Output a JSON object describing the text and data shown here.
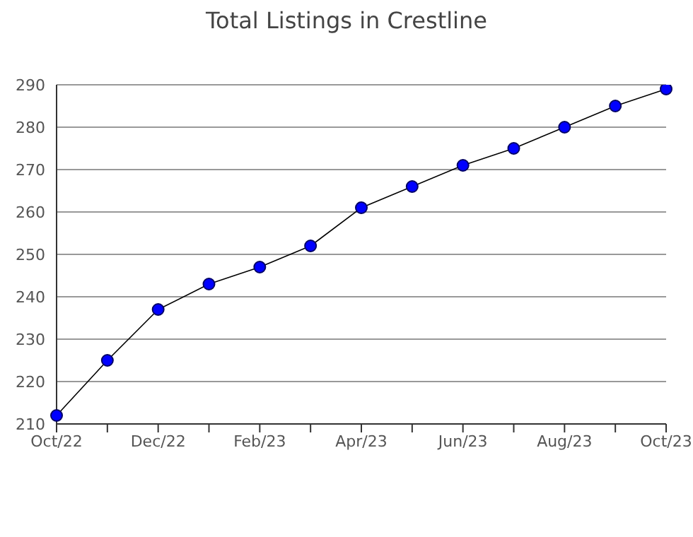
{
  "chart_data": {
    "type": "line",
    "title": "Total Listings in Crestline",
    "categories": [
      "Oct/22",
      null,
      "Dec/22",
      null,
      "Feb/23",
      null,
      "Apr/23",
      null,
      "Jun/23",
      null,
      "Aug/23",
      null,
      "Oct/23"
    ],
    "series": [
      {
        "color": "#0000ff",
        "values": [
          212,
          225,
          237,
          243,
          247,
          252,
          261,
          266,
          271,
          275,
          280,
          285,
          289
        ]
      }
    ],
    "ylim": [
      210,
      290
    ],
    "yticks": [
      210,
      220,
      230,
      240,
      250,
      260,
      270,
      280,
      290
    ],
    "grid": "y",
    "marker": "circle",
    "line_style": "solid"
  }
}
